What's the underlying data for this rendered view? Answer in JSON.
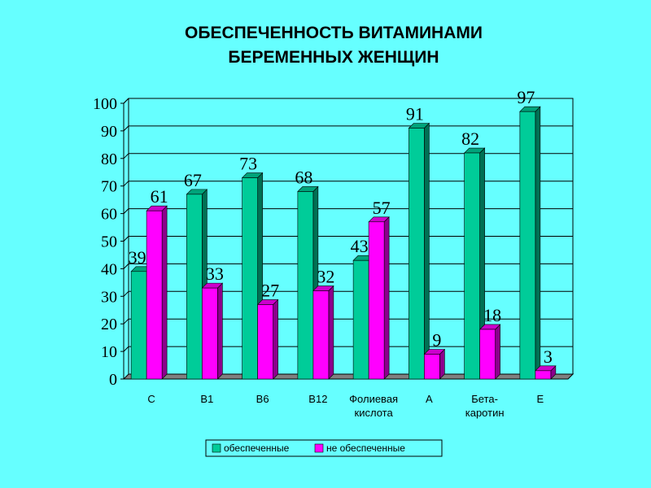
{
  "chart_data": {
    "type": "bar",
    "title_lines": [
      "ОБЕСПЕЧЕННОСТЬ ВИТАМИНАМИ",
      "БЕРЕМЕННЫХ ЖЕНЩИН"
    ],
    "categories": [
      [
        "С"
      ],
      [
        "В1"
      ],
      [
        "В6"
      ],
      [
        "В12"
      ],
      [
        "Фолиевая",
        "кислота"
      ],
      [
        "А"
      ],
      [
        "Бета-",
        "каротин"
      ],
      [
        "Е"
      ]
    ],
    "series": [
      {
        "name": "обеспеченные",
        "color": "#00cc99",
        "values": [
          39,
          67,
          73,
          68,
          43,
          91,
          82,
          97
        ]
      },
      {
        "name": "не обеспеченные",
        "color": "#ff00ff",
        "values": [
          61,
          33,
          27,
          32,
          57,
          9,
          18,
          3
        ]
      }
    ],
    "ylim": [
      0,
      100
    ],
    "yticks": [
      0,
      10,
      20,
      30,
      40,
      50,
      60,
      70,
      80,
      90,
      100
    ],
    "grid": true,
    "legend": "bottom",
    "style": "3d-bar"
  }
}
